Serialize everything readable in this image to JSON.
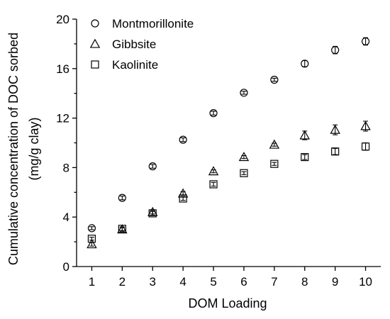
{
  "chart_data": {
    "type": "scatter",
    "xlabel": "DOM Loading",
    "ylabel_line1": "Cumulative concentration of DOC sorbed",
    "ylabel_line2": "(mg/g clay)",
    "xlim": [
      0.5,
      10.5
    ],
    "ylim": [
      0,
      20
    ],
    "x_ticks": [
      "1",
      "2",
      "3",
      "4",
      "5",
      "6",
      "7",
      "8",
      "9",
      "10"
    ],
    "y_ticks": [
      "0",
      "4",
      "8",
      "12",
      "16",
      "20"
    ],
    "legend_position": "top-left",
    "series": [
      {
        "name": "Montmorillonite",
        "marker": "circle",
        "x": [
          1,
          2,
          3,
          4,
          5,
          6,
          7,
          8,
          9,
          10
        ],
        "y": [
          3.1,
          5.55,
          8.1,
          10.25,
          12.4,
          14.05,
          15.1,
          16.4,
          17.5,
          18.2
        ],
        "err": [
          0.12,
          0.15,
          0.15,
          0.15,
          0.15,
          0.12,
          0.12,
          0.25,
          0.3,
          0.3
        ]
      },
      {
        "name": "Gibbsite",
        "marker": "triangle",
        "x": [
          1,
          2,
          3,
          4,
          5,
          6,
          7,
          8,
          9,
          10
        ],
        "y": [
          1.8,
          3.0,
          4.4,
          5.9,
          7.7,
          8.85,
          9.85,
          10.6,
          11.05,
          11.35
        ],
        "err": [
          0.15,
          0.15,
          0.15,
          0.15,
          0.12,
          0.12,
          0.12,
          0.35,
          0.4,
          0.4
        ]
      },
      {
        "name": "Kaolinite",
        "marker": "square",
        "x": [
          1,
          2,
          3,
          4,
          5,
          6,
          7,
          8,
          9,
          10
        ],
        "y": [
          2.25,
          3.05,
          4.3,
          5.5,
          6.65,
          7.55,
          8.3,
          8.85,
          9.3,
          9.7
        ],
        "err": [
          0.12,
          0.15,
          0.15,
          0.15,
          0.15,
          0.12,
          0.12,
          0.2,
          0.25,
          0.3
        ]
      }
    ]
  }
}
